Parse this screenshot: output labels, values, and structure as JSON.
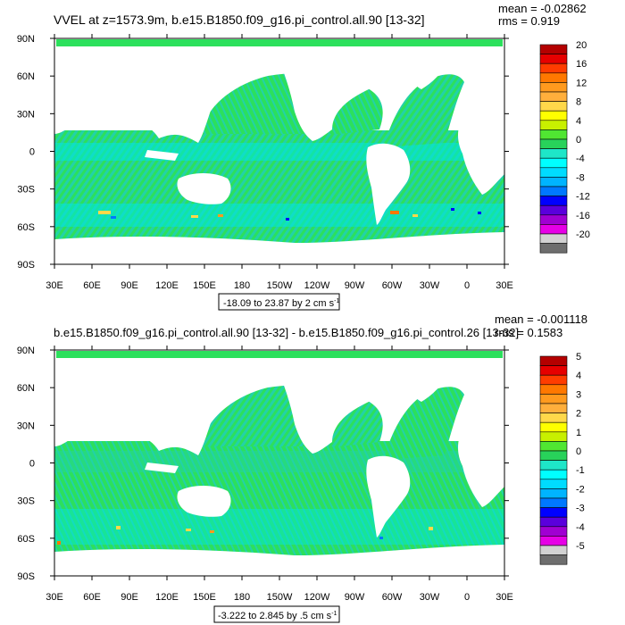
{
  "chart_data": [
    {
      "type": "heatmap",
      "title": "VVEL at z=1573.9m, b.e15.B1850.f09_g16.pi_control.all.90 [13-32]",
      "stats": {
        "mean": "mean = -0.02862",
        "rms": "rms = 0.919"
      },
      "x_ticks": [
        "30E",
        "60E",
        "90E",
        "120E",
        "150E",
        "180",
        "150W",
        "120W",
        "90W",
        "60W",
        "30W",
        "0",
        "30E"
      ],
      "y_ticks": [
        "90N",
        "60N",
        "30N",
        "0",
        "30S",
        "60S",
        "90S"
      ],
      "xlim": [
        30,
        390
      ],
      "ylim": [
        -90,
        90
      ],
      "range_label": "-18.09 to 23.87 by 2 cm s",
      "range_sup": "-1",
      "colorbar": {
        "labels": [
          "20",
          "16",
          "12",
          "8",
          "4",
          "0",
          "-4",
          "-8",
          "-12",
          "-16",
          "-20"
        ],
        "colors": [
          "#b40000",
          "#e60000",
          "#ff3c00",
          "#ff7800",
          "#ff9a1e",
          "#ffaf3c",
          "#ffd84a",
          "#ffff00",
          "#c8f000",
          "#50e632",
          "#28d25a",
          "#1ee6c8",
          "#00ffff",
          "#00dcff",
          "#00b4ff",
          "#0078ff",
          "#0000ff",
          "#5a00dc",
          "#a000d2",
          "#e600e6",
          "#d2d2d2",
          "#6e6e6e"
        ]
      },
      "dominant_values": [
        "-4 to 0",
        "0 to 2"
      ]
    },
    {
      "type": "heatmap",
      "title": "b.e15.B1850.f09_g16.pi_control.all.90 [13-32] - b.e15.B1850.f09_g16.pi_control.26 [13-32]",
      "stats": {
        "mean": "mean = -0.001118",
        "rms": "rms = 0.1583"
      },
      "x_ticks": [
        "30E",
        "60E",
        "90E",
        "120E",
        "150E",
        "180",
        "150W",
        "120W",
        "90W",
        "60W",
        "30W",
        "0",
        "30E"
      ],
      "y_ticks": [
        "90N",
        "60N",
        "30N",
        "0",
        "30S",
        "60S",
        "90S"
      ],
      "xlim": [
        30,
        390
      ],
      "ylim": [
        -90,
        90
      ],
      "range_label": "-3.222 to 2.845 by .5 cm s",
      "range_sup": "-1",
      "colorbar": {
        "labels": [
          "5",
          "4",
          "3",
          "2",
          "1",
          "0",
          "-1",
          "-2",
          "-3",
          "-4",
          "-5"
        ],
        "colors": [
          "#b40000",
          "#e60000",
          "#ff3c00",
          "#ff7800",
          "#ff9a1e",
          "#ffaf3c",
          "#ffd84a",
          "#ffff00",
          "#c8f000",
          "#50e632",
          "#28d25a",
          "#1ee6c8",
          "#00ffff",
          "#00dcff",
          "#00b4ff",
          "#0078ff",
          "#0000ff",
          "#5a00dc",
          "#a000d2",
          "#e600e6",
          "#d2d2d2",
          "#6e6e6e"
        ]
      },
      "dominant_values": [
        "-1 to 0",
        "0 to 0.5"
      ]
    }
  ]
}
